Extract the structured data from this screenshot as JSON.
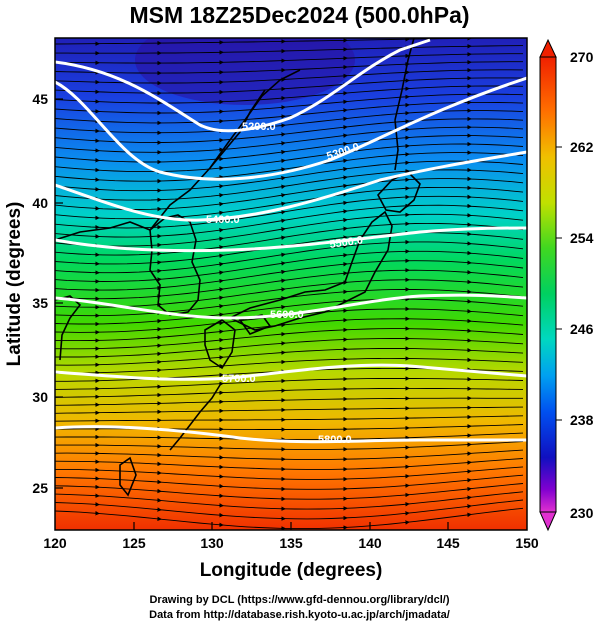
{
  "title": "MSM 18Z25Dec2024 (500.0hPa)",
  "x_axis": {
    "label": "Longitude (degrees)",
    "range": [
      120,
      150
    ],
    "ticks": [
      "120",
      "125",
      "130",
      "135",
      "140",
      "145",
      "150"
    ]
  },
  "y_axis": {
    "label": "Latitude  (degrees)",
    "range": [
      22.5,
      48
    ],
    "ticks": [
      "25",
      "30",
      "35",
      "40",
      "45"
    ]
  },
  "colorbar": {
    "min": 230,
    "max": 270,
    "tick_labels": [
      "270",
      "262",
      "254",
      "246",
      "238",
      "230"
    ],
    "colors": [
      "#e030d0",
      "#8000d0",
      "#1010c0",
      "#0050f0",
      "#00b0f0",
      "#00e0a0",
      "#00d040",
      "#60e000",
      "#c0e000",
      "#f0c000",
      "#ff7000",
      "#f02000"
    ]
  },
  "contours": [
    {
      "label": "5200.0",
      "lat_at_120": 46.2
    },
    {
      "label": "5300.0",
      "lat_at_120": 44.0
    },
    {
      "label": "5400.0",
      "lat_at_120": 41.0
    },
    {
      "label": "5500.0",
      "lat_at_120": 38.2
    },
    {
      "label": "5600.0",
      "lat_at_120": 35.2
    },
    {
      "label": "5700.0",
      "lat_at_120": 31.2
    },
    {
      "label": "5800.0",
      "lat_at_120": 28.3
    }
  ],
  "credits": {
    "line1": "Drawing by DCL (https://www.gfd-dennou.org/library/dcl/)",
    "line2": "Data from http://database.rish.kyoto-u.ac.jp/arch/jmadata/"
  }
}
